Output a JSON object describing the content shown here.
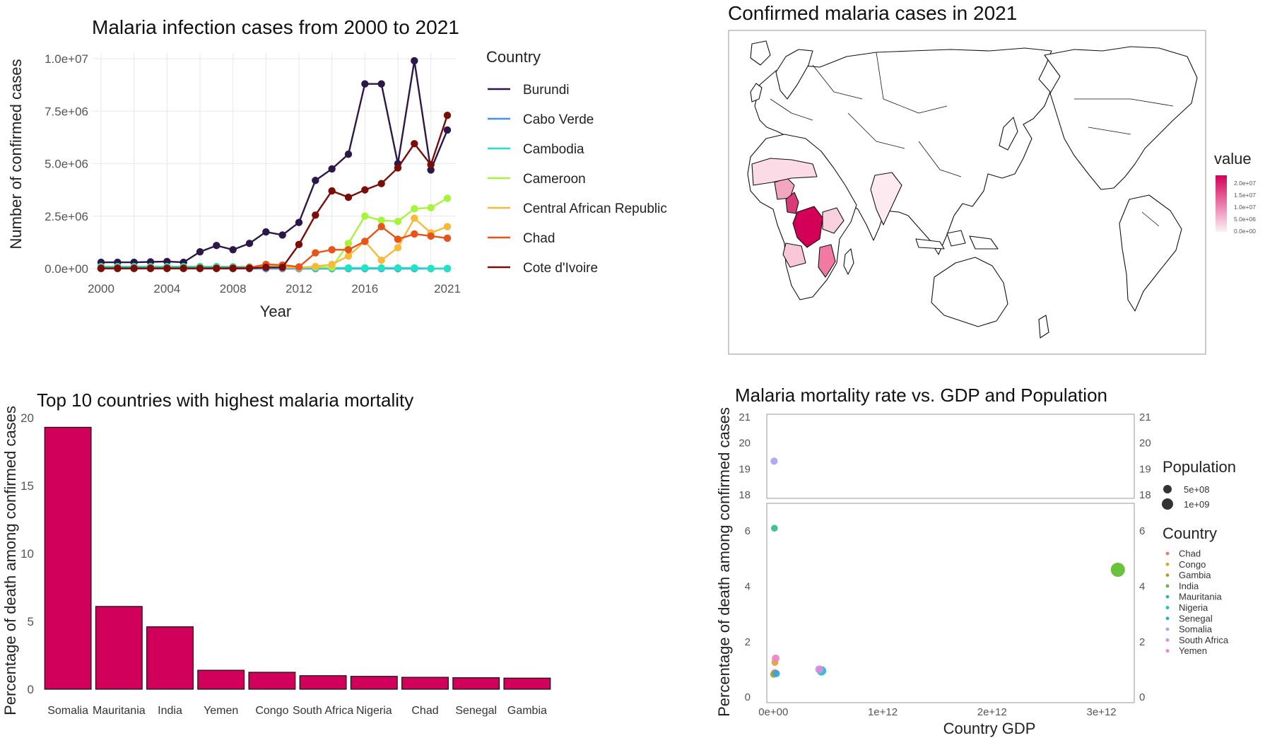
{
  "chart_data": [
    {
      "type": "line",
      "title": "Malaria infection cases from 2000 to 2021",
      "xlabel": "Year",
      "ylabel": "Number of confirmed cases",
      "xlim": [
        2000,
        2021
      ],
      "ylim": [
        0,
        10000000
      ],
      "x_ticks": [
        "2000",
        "2004",
        "2008",
        "2012",
        "2016",
        "2021"
      ],
      "y_ticks": [
        "0.0e+00",
        "2.5e+06",
        "5.0e+06",
        "7.5e+06",
        "1.0e+07"
      ],
      "grid": true,
      "legend_title": "Country",
      "legend_position": "right",
      "x": [
        2000,
        2001,
        2002,
        2003,
        2004,
        2005,
        2006,
        2007,
        2008,
        2009,
        2010,
        2011,
        2012,
        2013,
        2014,
        2015,
        2016,
        2017,
        2018,
        2019,
        2020,
        2021
      ],
      "series": [
        {
          "name": "Burundi",
          "color": "#2d1748",
          "values": [
            300000,
            300000,
            300000,
            320000,
            340000,
            300000,
            800000,
            1100000,
            900000,
            1200000,
            1750000,
            1600000,
            2200000,
            4200000,
            4750000,
            5450000,
            8800000,
            8800000,
            5000000,
            9900000,
            4700000,
            6600000
          ]
        },
        {
          "name": "Cabo Verde",
          "color": "#4a8cf0",
          "values": [
            50,
            60,
            40,
            50,
            40,
            30,
            30,
            20,
            30,
            40,
            50,
            40,
            40,
            30,
            50,
            30,
            50,
            450,
            20,
            10,
            80,
            20
          ]
        },
        {
          "name": "Cambodia",
          "color": "#1fe3c2",
          "values": [
            100000,
            100000,
            100000,
            100000,
            100000,
            100000,
            100000,
            100000,
            90000,
            80000,
            70000,
            60000,
            40000,
            30000,
            30000,
            30000,
            30000,
            30000,
            30000,
            30000,
            10000,
            10000
          ]
        },
        {
          "name": "Cameroon",
          "color": "#a6f53c",
          "values": [
            20000,
            20000,
            20000,
            20000,
            20000,
            20000,
            20000,
            30000,
            30000,
            60000,
            100000,
            120000,
            50000,
            80000,
            60000,
            1200000,
            2500000,
            2300000,
            2250000,
            2850000,
            2900000,
            3350000
          ]
        },
        {
          "name": "Central African Republic",
          "color": "#f8b93a",
          "values": [
            10000,
            10000,
            10000,
            10000,
            10000,
            10000,
            10000,
            10000,
            20000,
            30000,
            70000,
            50000,
            50000,
            100000,
            200000,
            600000,
            1300000,
            400000,
            1000000,
            2400000,
            1700000,
            2000000
          ]
        },
        {
          "name": "Chad",
          "color": "#e8531a",
          "values": [
            30000,
            30000,
            30000,
            30000,
            30000,
            30000,
            30000,
            30000,
            40000,
            50000,
            200000,
            170000,
            80000,
            750000,
            900000,
            900000,
            1300000,
            2000000,
            1400000,
            1650000,
            1550000,
            1450000
          ]
        },
        {
          "name": "Cote d'Ivoire",
          "color": "#7a0d07",
          "values": [
            10000,
            10000,
            10000,
            10000,
            10000,
            10000,
            10000,
            10000,
            10000,
            20000,
            60000,
            60000,
            1150000,
            2550000,
            3700000,
            3400000,
            3750000,
            4050000,
            4800000,
            5950000,
            4950000,
            7300000
          ]
        }
      ]
    },
    {
      "type": "map",
      "title": "Confirmed malaria cases in 2021",
      "legend_title": "value",
      "legend_position": "right",
      "color_scale": [
        "#fdf2f6",
        "#d40058"
      ],
      "legend_ticks": [
        "2.0e+07",
        "1.5e+07",
        "1.0e+07",
        "5.0e+06",
        "0.0e+00"
      ]
    },
    {
      "type": "bar",
      "title": "Top 10 countries with highest malaria mortality",
      "xlabel": "",
      "ylabel": "Percentage of death among confirmed cases",
      "ylim": [
        0,
        20
      ],
      "y_ticks": [
        "0",
        "5",
        "10",
        "15",
        "20"
      ],
      "grid": false,
      "color": "#d1005a",
      "categories": [
        "Somalia",
        "Mauritania",
        "India",
        "Yemen",
        "Congo",
        "South Africa",
        "Nigeria",
        "Chad",
        "Senegal",
        "Gambia"
      ],
      "values": [
        19.3,
        6.1,
        4.6,
        1.4,
        1.25,
        1.0,
        0.95,
        0.88,
        0.85,
        0.82
      ]
    },
    {
      "type": "scatter",
      "title": "Malaria mortality rate vs. GDP and Population",
      "xlabel": "Country GDP",
      "ylabel": "Percentage of death among confirmed cases",
      "x_ticks": [
        "0e+00",
        "1e+12",
        "2e+12",
        "3e+12"
      ],
      "xlim": [
        -60000000000,
        3300000000000
      ],
      "upper_ylim": [
        18,
        21
      ],
      "upper_y_ticks": [
        "18",
        "19",
        "20",
        "21"
      ],
      "lower_ylim": [
        -0.2,
        7.0
      ],
      "lower_y_ticks": [
        "0",
        "2",
        "4",
        "6"
      ],
      "size_legend_title": "Population",
      "size_legend": [
        "5e+08",
        "1e+09"
      ],
      "legend_title": "Country",
      "legend_position": "right",
      "points": [
        {
          "name": "Chad",
          "gdp": 12000000000,
          "rate": 0.88,
          "population": 17000000,
          "color": "#f1766c"
        },
        {
          "name": "Congo",
          "gdp": 14000000000,
          "rate": 1.25,
          "population": 6000000,
          "color": "#e0a431"
        },
        {
          "name": "Gambia",
          "gdp": 2000000000,
          "rate": 0.82,
          "population": 2600000,
          "color": "#a5a41d"
        },
        {
          "name": "India",
          "gdp": 3150000000000,
          "rate": 4.6,
          "population": 1400000000,
          "color": "#5bbd2b"
        },
        {
          "name": "Mauritania",
          "gdp": 10000000000,
          "rate": 6.1,
          "population": 4700000,
          "color": "#2fbf82"
        },
        {
          "name": "Nigeria",
          "gdp": 440000000000,
          "rate": 0.95,
          "population": 213000000,
          "color": "#21bccf"
        },
        {
          "name": "Senegal",
          "gdp": 27000000000,
          "rate": 0.85,
          "population": 17000000,
          "color": "#2fa6e6"
        },
        {
          "name": "Somalia",
          "gdp": 7000000000,
          "rate": 19.3,
          "population": 17000000,
          "color": "#a9a4f0"
        },
        {
          "name": "South Africa",
          "gdp": 420000000000,
          "rate": 1.0,
          "population": 60000000,
          "color": "#d98ce0"
        },
        {
          "name": "Yemen",
          "gdp": 21000000000,
          "rate": 1.4,
          "population": 33000000,
          "color": "#f080c8"
        }
      ]
    }
  ]
}
